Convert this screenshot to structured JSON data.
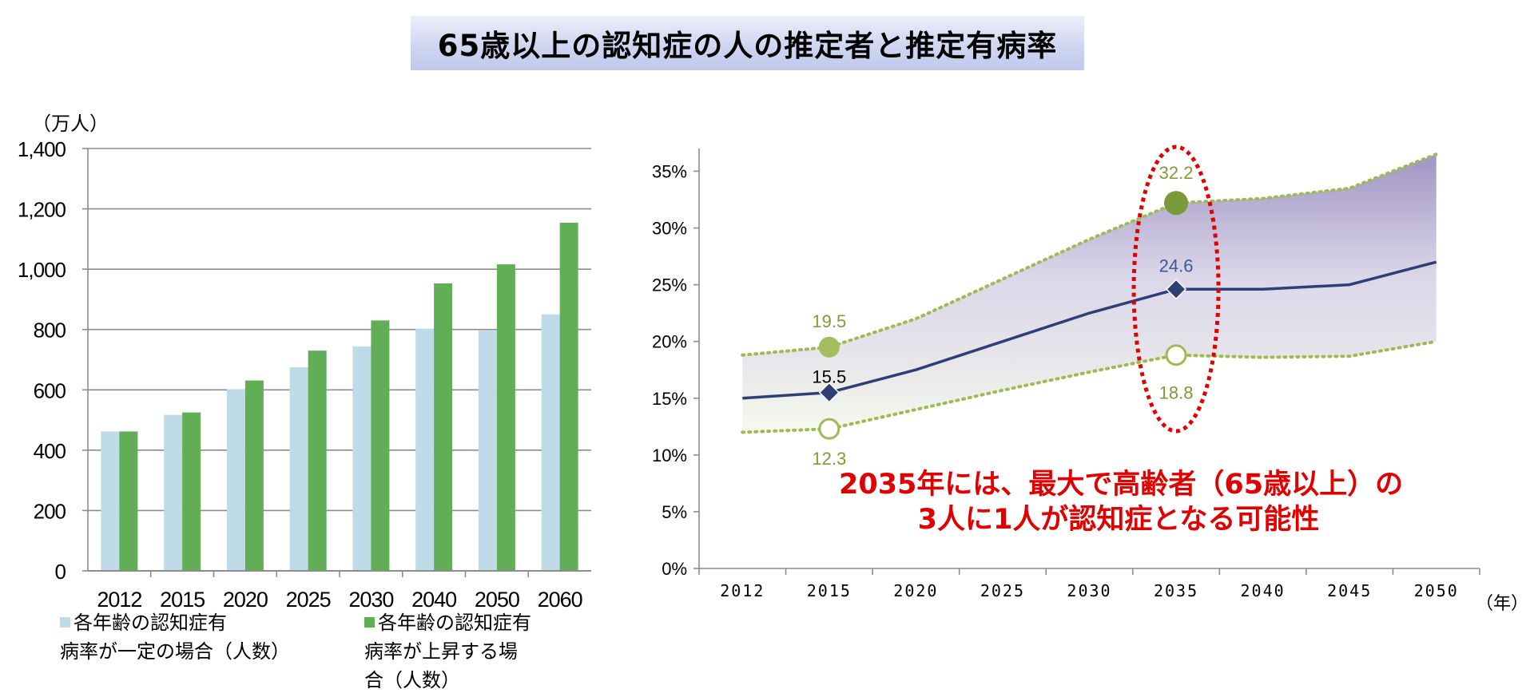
{
  "title": "65歳以上の認知症の人の推定者と推定有病率",
  "chart_data": [
    {
      "type": "bar",
      "unit_label": "（万人）",
      "categories": [
        "2012",
        "2015",
        "2020",
        "2025",
        "2030",
        "2040",
        "2050",
        "2060"
      ],
      "series": [
        {
          "name": "各年齢の認知症有\n病率が一定の場合（人数）",
          "color": "#c0dbe8",
          "values": [
            462,
            517,
            602,
            675,
            744,
            802,
            797,
            850
          ]
        },
        {
          "name": "各年齢の認知症有\n病率が上昇する場\n合（人数）",
          "color": "#62ae57",
          "values": [
            462,
            525,
            631,
            730,
            830,
            953,
            1016,
            1154
          ]
        }
      ],
      "ylim": [
        0,
        1400
      ],
      "yticks": [
        "0",
        "200",
        "400",
        "600",
        "800",
        "1,000",
        "1,200",
        "1,400"
      ],
      "grid": true
    },
    {
      "type": "line",
      "x": [
        "2012",
        "2015",
        "2020",
        "2025",
        "2030",
        "2035",
        "2040",
        "2045",
        "2050"
      ],
      "x_unit_label": "（年）",
      "ylim": [
        0,
        37
      ],
      "yticks": [
        "0%",
        "5%",
        "10%",
        "15%",
        "20%",
        "25%",
        "30%",
        "35%"
      ],
      "series": [
        {
          "role": "central",
          "color": "#2f3f75",
          "values": [
            15.0,
            15.5,
            17.5,
            20.0,
            22.5,
            24.6,
            24.6,
            25.0,
            27.0
          ]
        },
        {
          "role": "upper",
          "color": "#9dba57",
          "values": [
            18.8,
            19.5,
            22.0,
            25.5,
            29.0,
            32.2,
            32.6,
            33.5,
            36.5
          ]
        },
        {
          "role": "lower",
          "color": "#9dba57",
          "values": [
            12.0,
            12.3,
            14.0,
            15.7,
            17.3,
            18.8,
            18.6,
            18.7,
            20.0
          ]
        }
      ],
      "data_labels": [
        {
          "text": "15.5",
          "x": "2015",
          "y": 15.5,
          "color": "#000000"
        },
        {
          "text": "19.5",
          "x": "2015",
          "y": 19.5,
          "color": "#7f9a3a"
        },
        {
          "text": "12.3",
          "x": "2015",
          "y": 12.3,
          "color": "#7f9a3a"
        },
        {
          "text": "24.6",
          "x": "2035",
          "y": 24.6,
          "color": "#3c5a9a"
        },
        {
          "text": "32.2",
          "x": "2035",
          "y": 32.2,
          "color": "#7f9a3a"
        },
        {
          "text": "18.8",
          "x": "2035",
          "y": 18.8,
          "color": "#7f9a3a"
        }
      ],
      "highlight_x": "2035",
      "highlight_color": "#e00000",
      "band_color": "#9b8fc0"
    }
  ],
  "annotation": {
    "line1": "2035年には、最大で高齢者（65歳以上）の",
    "line2": "3人に1人が認知症となる可能性"
  }
}
